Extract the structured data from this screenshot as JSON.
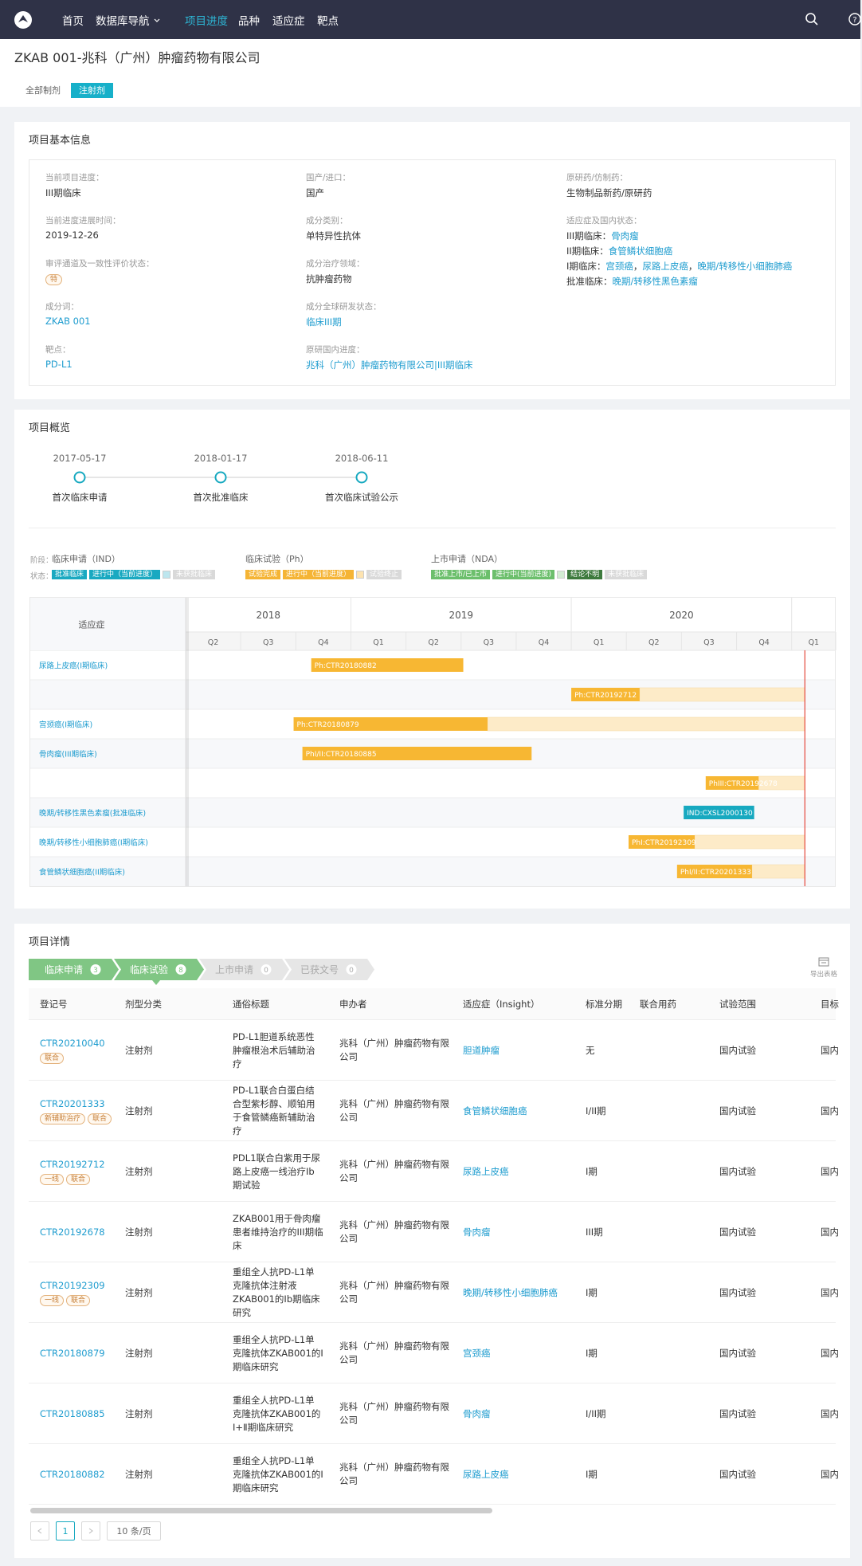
{
  "nav": {
    "items": [
      "首页",
      "数据库导航",
      "项目进度",
      "品种",
      "适应症",
      "靶点"
    ],
    "active": 2
  },
  "header": {
    "title": "ZKAB 001-兆科（广州）肿瘤药物有限公司",
    "tabs": [
      "全部制剂",
      "注射剂"
    ],
    "active_tab": 1
  },
  "basic_info": {
    "title": "项目基本信息",
    "columns": [
      [
        {
          "label": "当前项目进度：",
          "value": "III期临床"
        },
        {
          "label": "当前进度进展时间：",
          "value": "2019-12-26"
        },
        {
          "label": "审评通道及一致性评价状态：",
          "value": "特",
          "badge": true
        },
        {
          "label": "成分词：",
          "value": "ZKAB 001",
          "link": true
        },
        {
          "label": "靶点：",
          "value": "PD-L1",
          "link": true
        }
      ],
      [
        {
          "label": "国产/进口：",
          "value": "国产"
        },
        {
          "label": "成分类别：",
          "value": "单特异性抗体"
        },
        {
          "label": "成分治疗领域：",
          "value": "抗肿瘤药物"
        },
        {
          "label": "成分全球研发状态：",
          "value": "临床III期",
          "link": true
        },
        {
          "label": "原研国内进度：",
          "value": "兆科（广州）肿瘤药物有限公司|III期临床",
          "link": true
        }
      ],
      [
        {
          "label": "原研药/仿制药：",
          "value": "生物制品新药/原研药"
        },
        {
          "label": "适应症及国内状态：",
          "separator": "，",
          "lines": [
            {
              "prefix": "III期临床：",
              "links": [
                "骨肉瘤"
              ]
            },
            {
              "prefix": "II期临床：",
              "links": [
                "食管鳞状细胞癌"
              ]
            },
            {
              "prefix": "I期临床：",
              "links": [
                "宫颈癌",
                "尿路上皮癌",
                "晚期/转移性小细胞肺癌"
              ]
            },
            {
              "prefix": "批准临床：",
              "links": [
                "晚期/转移性黑色素瘤"
              ]
            }
          ]
        }
      ]
    ]
  },
  "overview": {
    "title": "项目概览",
    "timeline": [
      {
        "date": "2017-05-17",
        "label": "首次临床申请"
      },
      {
        "date": "2018-01-17",
        "label": "首次批准临床"
      },
      {
        "date": "2018-06-11",
        "label": "首次临床试验公示"
      }
    ],
    "legend": {
      "stage_label": "阶段：",
      "status_label": "状态：",
      "groups": [
        {
          "name": "临床申请（IND）",
          "ongoing_color": "#bde6ee",
          "statuses": [
            {
              "text": "批准临床",
              "color": "#19a9c1"
            },
            {
              "text": "进行中（当前进度）",
              "color": "#19a9c1"
            },
            {
              "text": "未获批临床",
              "color": "#d9d9d9"
            }
          ]
        },
        {
          "name": "临床试验（Ph）",
          "ongoing_color": "#fde3b0",
          "statuses": [
            {
              "text": "试验完成",
              "color": "#f5b435"
            },
            {
              "text": "进行中（当前进度）",
              "color": "#f5b435"
            },
            {
              "text": "试验终止",
              "color": "#d9d9d9"
            }
          ]
        },
        {
          "name": "上市申请（NDA）",
          "ongoing_color": "#d3edd3",
          "statuses": [
            {
              "text": "批准上市/已上市",
              "color": "#6cbf6c"
            },
            {
              "text": "进行中(当前进度)",
              "color": "#6cbf6c"
            },
            {
              "text": "结论不明",
              "color": "#3d7a3d"
            },
            {
              "text": "未获批临床",
              "color": "#d9d9d9"
            }
          ]
        }
      ]
    },
    "gantt": {
      "header": "适应症",
      "years": [
        2018,
        2019,
        2020
      ],
      "quarters": [
        "Q2",
        "Q3",
        "Q4",
        "Q1",
        "Q2",
        "Q3",
        "Q4",
        "Q1",
        "Q2",
        "Q3",
        "Q4",
        "Q1"
      ],
      "xlim": [
        2018.25,
        2021.2
      ],
      "today": 2021.06,
      "today_color": "#e5483b",
      "ongoing_color": "#fdebc8",
      "rows": [
        {
          "label": "尿路上皮癌(I期临床)",
          "bar": {
            "text": "Ph:CTR20180882",
            "start": 2018.82,
            "end": 2019.51,
            "color": "#f7b733",
            "ongoing": false
          }
        },
        {
          "label": null,
          "bar": {
            "text": "Ph:CTR20192712",
            "start": 2020.0,
            "end": 2020.31,
            "color": "#f7b733",
            "ongoing": true
          }
        },
        {
          "label": "宫颈癌(I期临床)",
          "bar": {
            "text": "Ph:CTR20180879",
            "start": 2018.74,
            "end": 2019.62,
            "color": "#f7b733",
            "ongoing": true
          }
        },
        {
          "label": "骨肉瘤(III期临床)",
          "bar": {
            "text": "PhI/II:CTR20180885",
            "start": 2018.78,
            "end": 2019.82,
            "color": "#f7b733",
            "ongoing": false
          }
        },
        {
          "label": null,
          "bar": {
            "text": "PhIII:CTR20192678",
            "start": 2020.61,
            "end": 2020.85,
            "color": "#f7b733",
            "ongoing": true
          }
        },
        {
          "label": "晚期/转移性黑色素瘤(批准临床)",
          "bar": {
            "text": "IND:CXSL2000130",
            "start": 2020.51,
            "end": 2020.83,
            "color": "#17a9c0",
            "ongoing": false
          }
        },
        {
          "label": "晚期/转移性小细胞肺癌(I期临床)",
          "bar": {
            "text": "PhI:CTR20192309",
            "start": 2020.26,
            "end": 2020.56,
            "color": "#f7b733",
            "ongoing": true
          }
        },
        {
          "label": "食管鳞状细胞癌(II期临床)",
          "bar": {
            "text": "PhI/II:CTR20201333",
            "start": 2020.48,
            "end": 2020.82,
            "color": "#f7b733",
            "ongoing": true
          }
        }
      ]
    }
  },
  "details": {
    "title": "项目详情",
    "tabs": [
      {
        "name": "临床申请",
        "count": 3
      },
      {
        "name": "临床试验",
        "count": 8
      },
      {
        "name": "上市申请",
        "count": 0
      },
      {
        "name": "已获文号",
        "count": 0
      }
    ],
    "active_tab": 1,
    "export": "导出表格",
    "columns": [
      "登记号",
      "剂型分类",
      "通俗标题",
      "申办者",
      "适应症（Insight）",
      "标准分期",
      "联合用药",
      "试验范围",
      "目标"
    ],
    "rows": [
      {
        "id": "CTR20210040",
        "tags": [
          "联合"
        ],
        "form": "注射剂",
        "title": "PD-L1胆道系统恶性肿瘤根治术后辅助治疗",
        "sponsor": "兆科（广州）肿瘤药物有限公司",
        "indication": "胆道肿瘤",
        "phase": "无",
        "scope": "国内试验",
        "target": "国内"
      },
      {
        "id": "CTR20201333",
        "tags": [
          "新辅助治疗",
          "联合"
        ],
        "form": "注射剂",
        "title": "PD-L1联合白蛋白结合型紫杉醇、顺铂用于食管鳞癌新辅助治疗",
        "sponsor": "兆科（广州）肿瘤药物有限公司",
        "indication": "食管鳞状细胞癌",
        "phase": "I/II期",
        "scope": "国内试验",
        "target": "国内"
      },
      {
        "id": "CTR20192712",
        "tags": [
          "一线",
          "联合"
        ],
        "form": "注射剂",
        "title": "PDL1联合白紫用于尿路上皮癌一线治疗Ib期试验",
        "sponsor": "兆科（广州）肿瘤药物有限公司",
        "indication": "尿路上皮癌",
        "phase": "I期",
        "scope": "国内试验",
        "target": "国内"
      },
      {
        "id": "CTR20192678",
        "tags": [],
        "form": "注射剂",
        "title": "ZKAB001用于骨肉瘤患者维持治疗的III期临床",
        "sponsor": "兆科（广州）肿瘤药物有限公司",
        "indication": "骨肉瘤",
        "phase": "III期",
        "scope": "国内试验",
        "target": "国内"
      },
      {
        "id": "CTR20192309",
        "tags": [
          "一线",
          "联合"
        ],
        "form": "注射剂",
        "title": "重组全人抗PD-L1单克隆抗体注射液ZKAB001的Ⅰb期临床研究",
        "sponsor": "兆科（广州）肿瘤药物有限公司",
        "indication": "晚期/转移性小细胞肺癌",
        "phase": "I期",
        "scope": "国内试验",
        "target": "国内"
      },
      {
        "id": "CTR20180879",
        "tags": [],
        "form": "注射剂",
        "title": "重组全人抗PD-L1单克隆抗体ZKAB001的Ⅰ期临床研究",
        "sponsor": "兆科（广州）肿瘤药物有限公司",
        "indication": "宫颈癌",
        "phase": "I期",
        "scope": "国内试验",
        "target": "国内"
      },
      {
        "id": "CTR20180885",
        "tags": [],
        "form": "注射剂",
        "title": "重组全人抗PD-L1单克隆抗体ZKAB001的Ⅰ+Ⅱ期临床研究",
        "sponsor": "兆科（广州）肿瘤药物有限公司",
        "indication": "骨肉瘤",
        "phase": "I/II期",
        "scope": "国内试验",
        "target": "国内"
      },
      {
        "id": "CTR20180882",
        "tags": [],
        "form": "注射剂",
        "title": "重组全人抗PD-L1单克隆抗体ZKAB001的Ⅰ期临床研究",
        "sponsor": "兆科（广州）肿瘤药物有限公司",
        "indication": "尿路上皮癌",
        "phase": "I期",
        "scope": "国内试验",
        "target": "国内"
      }
    ],
    "pagination": {
      "page": 1,
      "page_size": "10 条/页"
    }
  }
}
